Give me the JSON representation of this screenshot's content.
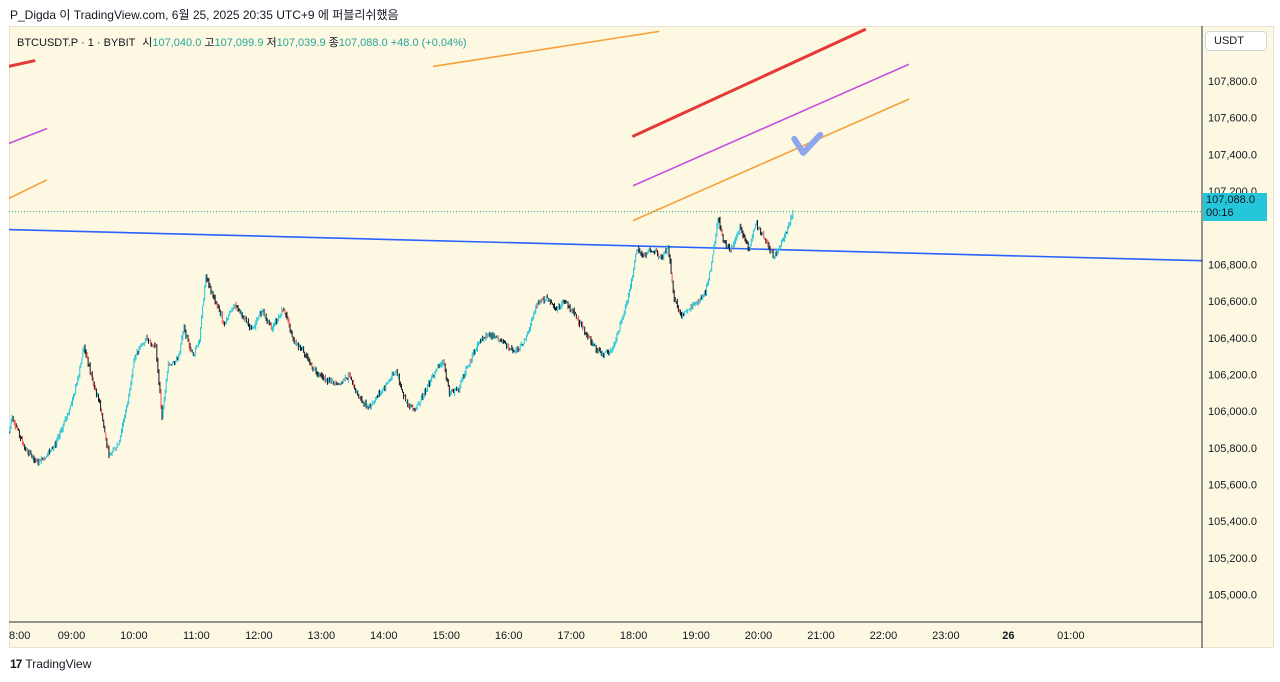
{
  "caption": "P_Digda 이 TradingView.com, 6월 25, 2025 20:35 UTC+9 에 퍼블리쉬했음",
  "legend": {
    "symbol": "BTCUSDT.P · 1 · BYBIT",
    "open_label": "시",
    "open_value": "107,040.0",
    "high_label": "고",
    "high_value": "107,099.9",
    "low_label": "저",
    "low_value": "107,039.9",
    "close_label": "종",
    "close_value": "107,088.0",
    "change": "+48.0 (+0.04%)"
  },
  "currency_button": "USDT",
  "last_price": {
    "value": "107,088.0",
    "countdown": "00:16"
  },
  "footer_brand": "TradingView",
  "footer_logo": "17",
  "colors": {
    "background": "#fdf8e2",
    "up": "#26c6da",
    "down": "#131722",
    "red_candle": "#ef5350",
    "trend_red": "#e53935",
    "trend_purple": "#c64fe0",
    "trend_orange": "#f5a13a",
    "trend_blue": "#2962ff",
    "check_mark": "#8fa5ec"
  },
  "chart_data": {
    "type": "candlestick",
    "symbol": "BTCUSDT.P",
    "interval": "1",
    "exchange": "BYBIT",
    "y_range": [
      104850,
      108100
    ],
    "y_ticks": [
      {
        "value": 107800,
        "label": "107,800.0"
      },
      {
        "value": 107600,
        "label": "107,600.0"
      },
      {
        "value": 107400,
        "label": "107,400.0"
      },
      {
        "value": 107200,
        "label": "107,200.0"
      },
      {
        "value": 106800,
        "label": "106,800.0"
      },
      {
        "value": 106600,
        "label": "106,600.0"
      },
      {
        "value": 106400,
        "label": "106,400.0"
      },
      {
        "value": 106200,
        "label": "106,200.0"
      },
      {
        "value": 106000,
        "label": "106,000.0"
      },
      {
        "value": 105800,
        "label": "105,800.0"
      },
      {
        "value": 105600,
        "label": "105,600.0"
      },
      {
        "value": 105400,
        "label": "105,400.0"
      },
      {
        "value": 105200,
        "label": "105,200.0"
      },
      {
        "value": 105000,
        "label": "105,000.0"
      }
    ],
    "x_range": [
      8.0,
      27.1
    ],
    "x_ticks": [
      {
        "value": 8.0,
        "label": "8:00"
      },
      {
        "value": 9.0,
        "label": "09:00"
      },
      {
        "value": 10.0,
        "label": "10:00"
      },
      {
        "value": 11.0,
        "label": "11:00"
      },
      {
        "value": 12.0,
        "label": "12:00"
      },
      {
        "value": 13.0,
        "label": "13:00"
      },
      {
        "value": 14.0,
        "label": "14:00"
      },
      {
        "value": 15.0,
        "label": "15:00"
      },
      {
        "value": 16.0,
        "label": "16:00"
      },
      {
        "value": 17.0,
        "label": "17:00"
      },
      {
        "value": 18.0,
        "label": "18:00"
      },
      {
        "value": 19.0,
        "label": "19:00"
      },
      {
        "value": 20.0,
        "label": "20:00"
      },
      {
        "value": 21.0,
        "label": "21:00"
      },
      {
        "value": 22.0,
        "label": "22:00"
      },
      {
        "value": 23.0,
        "label": "23:00"
      },
      {
        "value": 24.0,
        "label": "26"
      },
      {
        "value": 25.0,
        "label": "01:00"
      }
    ],
    "last_price": 107088.0,
    "price_path": [
      [
        8.0,
        105880
      ],
      [
        8.05,
        105970
      ],
      [
        8.25,
        105800
      ],
      [
        8.45,
        105720
      ],
      [
        8.6,
        105760
      ],
      [
        8.75,
        105820
      ],
      [
        8.9,
        105950
      ],
      [
        9.05,
        106100
      ],
      [
        9.2,
        106350
      ],
      [
        9.35,
        106150
      ],
      [
        9.45,
        106050
      ],
      [
        9.6,
        105750
      ],
      [
        9.75,
        105820
      ],
      [
        9.9,
        106050
      ],
      [
        10.0,
        106280
      ],
      [
        10.1,
        106350
      ],
      [
        10.2,
        106400
      ],
      [
        10.35,
        106350
      ],
      [
        10.45,
        105970
      ],
      [
        10.55,
        106250
      ],
      [
        10.7,
        106280
      ],
      [
        10.8,
        106450
      ],
      [
        10.95,
        106300
      ],
      [
        11.05,
        106400
      ],
      [
        11.15,
        106730
      ],
      [
        11.3,
        106600
      ],
      [
        11.45,
        106480
      ],
      [
        11.6,
        106580
      ],
      [
        11.75,
        106520
      ],
      [
        11.9,
        106440
      ],
      [
        12.05,
        106550
      ],
      [
        12.2,
        106450
      ],
      [
        12.4,
        106560
      ],
      [
        12.55,
        106380
      ],
      [
        12.7,
        106340
      ],
      [
        12.85,
        106240
      ],
      [
        13.0,
        106190
      ],
      [
        13.15,
        106160
      ],
      [
        13.3,
        106150
      ],
      [
        13.45,
        106190
      ],
      [
        13.6,
        106070
      ],
      [
        13.75,
        106020
      ],
      [
        13.9,
        106080
      ],
      [
        14.05,
        106150
      ],
      [
        14.2,
        106220
      ],
      [
        14.35,
        106050
      ],
      [
        14.5,
        106010
      ],
      [
        14.65,
        106100
      ],
      [
        14.8,
        106200
      ],
      [
        14.95,
        106280
      ],
      [
        15.05,
        106100
      ],
      [
        15.2,
        106120
      ],
      [
        15.35,
        106250
      ],
      [
        15.5,
        106360
      ],
      [
        15.65,
        106420
      ],
      [
        15.8,
        106400
      ],
      [
        15.95,
        106360
      ],
      [
        16.1,
        106320
      ],
      [
        16.25,
        106380
      ],
      [
        16.45,
        106580
      ],
      [
        16.6,
        106620
      ],
      [
        16.75,
        106560
      ],
      [
        16.9,
        106600
      ],
      [
        17.05,
        106530
      ],
      [
        17.2,
        106450
      ],
      [
        17.35,
        106360
      ],
      [
        17.5,
        106310
      ],
      [
        17.65,
        106330
      ],
      [
        17.8,
        106480
      ],
      [
        17.95,
        106680
      ],
      [
        18.05,
        106880
      ],
      [
        18.15,
        106850
      ],
      [
        18.3,
        106880
      ],
      [
        18.45,
        106830
      ],
      [
        18.55,
        106900
      ],
      [
        18.65,
        106620
      ],
      [
        18.75,
        106520
      ],
      [
        18.9,
        106560
      ],
      [
        19.05,
        106600
      ],
      [
        19.15,
        106650
      ],
      [
        19.25,
        106800
      ],
      [
        19.35,
        107060
      ],
      [
        19.45,
        106920
      ],
      [
        19.55,
        106880
      ],
      [
        19.7,
        107000
      ],
      [
        19.85,
        106880
      ],
      [
        19.95,
        107030
      ],
      [
        20.05,
        106970
      ],
      [
        20.15,
        106900
      ],
      [
        20.25,
        106840
      ],
      [
        20.35,
        106900
      ],
      [
        20.45,
        106980
      ],
      [
        20.55,
        107088
      ]
    ],
    "trend_lines": [
      {
        "color": "trend_blue",
        "width": 1.6,
        "from": [
          8.0,
          106990
        ],
        "to": [
          27.1,
          106820
        ]
      },
      {
        "color": "trend_red",
        "width": 3,
        "from": [
          18.0,
          107500
        ],
        "to": [
          21.7,
          108080
        ]
      },
      {
        "color": "trend_red",
        "width": 3,
        "from": [
          8.0,
          107880
        ],
        "to": [
          8.4,
          107910
        ]
      },
      {
        "color": "trend_purple",
        "width": 1.6,
        "from": [
          18.0,
          107230
        ],
        "to": [
          22.4,
          107890
        ]
      },
      {
        "color": "trend_purple",
        "width": 1.6,
        "from": [
          8.0,
          107460
        ],
        "to": [
          8.6,
          107540
        ]
      },
      {
        "color": "trend_orange",
        "width": 1.6,
        "from": [
          18.0,
          107040
        ],
        "to": [
          22.4,
          107700
        ]
      },
      {
        "color": "trend_orange",
        "width": 1.6,
        "from": [
          8.0,
          107160
        ],
        "to": [
          8.6,
          107260
        ]
      },
      {
        "color": "trend_orange",
        "width": 1.6,
        "from": [
          14.8,
          107880
        ],
        "to": [
          18.4,
          108070
        ]
      }
    ]
  }
}
